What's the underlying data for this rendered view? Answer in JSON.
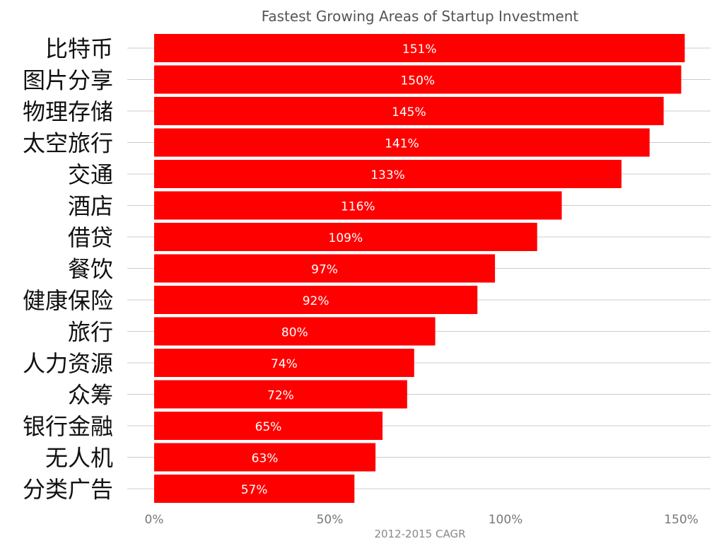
{
  "chart_data": {
    "type": "bar",
    "orientation": "horizontal",
    "title": "Fastest Growing Areas of Startup Investment",
    "xlabel": "2012-2015 CAGR",
    "ylabel": "",
    "xlim": [
      0,
      155
    ],
    "x_ticks": [
      {
        "value": 0,
        "label": "0%"
      },
      {
        "value": 50,
        "label": "50%"
      },
      {
        "value": 100,
        "label": "100%"
      },
      {
        "value": 150,
        "label": "150%"
      }
    ],
    "grid": true,
    "legend": "none",
    "bar_color": "#ff0000",
    "categories": [
      "比特币",
      "图片分享",
      "物理存储",
      "太空旅行",
      "交通",
      "酒店",
      "借贷",
      "餐饮",
      "健康保险",
      "旅行",
      "人力资源",
      "众筹",
      "银行金融",
      "无人机",
      "分类广告"
    ],
    "values": [
      151,
      150,
      145,
      141,
      133,
      116,
      109,
      97,
      92,
      80,
      74,
      72,
      65,
      63,
      57
    ],
    "data_labels": [
      "151%",
      "150%",
      "145%",
      "141%",
      "133%",
      "116%",
      "109%",
      "97%",
      "92%",
      "80%",
      "74%",
      "72%",
      "65%",
      "63%",
      "57%"
    ]
  }
}
